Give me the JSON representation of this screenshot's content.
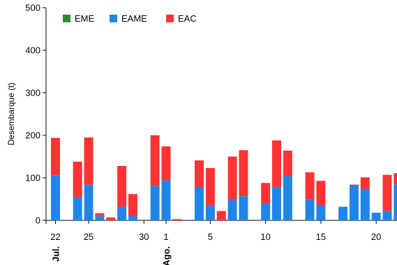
{
  "chart_data": {
    "type": "bar",
    "stacked": true,
    "title": "",
    "ylabel": "Desembarque (t)",
    "xlabel": "",
    "ylim": [
      0,
      500
    ],
    "yticks": [
      0,
      100,
      200,
      300,
      400,
      500
    ],
    "grid": false,
    "legend_position": "top-left",
    "colors": {
      "EME": "#2e8b2e",
      "EAME": "#1f86e8",
      "EAC": "#ff3333"
    },
    "x_tick_labels": [
      {
        "day": 0,
        "label": "22"
      },
      {
        "day": 3,
        "label": "25"
      },
      {
        "day": 8,
        "label": "30"
      },
      {
        "day": 10,
        "label": "1"
      },
      {
        "day": 14,
        "label": "5"
      },
      {
        "day": 19,
        "label": "10"
      },
      {
        "day": 24,
        "label": "15"
      },
      {
        "day": 29,
        "label": "20"
      }
    ],
    "month_labels": [
      {
        "day": 0,
        "label": "Jul."
      },
      {
        "day": 10,
        "label": "Ago."
      }
    ],
    "days": [
      0,
      2,
      3,
      4,
      5,
      6,
      7,
      9,
      10,
      11,
      13,
      14,
      15,
      16,
      17,
      19,
      20,
      21,
      23,
      24,
      26,
      27,
      28,
      29,
      30,
      31
    ],
    "series": [
      {
        "name": "EME",
        "values": [
          0,
          0,
          0,
          0,
          0,
          0,
          0,
          0,
          0,
          0,
          0,
          0,
          0,
          0,
          0,
          0,
          0,
          0,
          0,
          0,
          0,
          0,
          0,
          0,
          0,
          0
        ]
      },
      {
        "name": "EAME",
        "values": [
          106,
          54,
          84,
          10,
          0,
          32,
          10,
          81,
          94,
          0,
          78,
          36,
          0,
          48,
          57,
          40,
          78,
          104,
          48,
          36,
          32,
          82,
          73,
          18,
          22,
          85
        ]
      },
      {
        "name": "EAC",
        "values": [
          88,
          84,
          111,
          7,
          7,
          96,
          52,
          119,
          80,
          3,
          63,
          87,
          22,
          102,
          108,
          48,
          110,
          60,
          65,
          57,
          0,
          2,
          28,
          0,
          85,
          26
        ]
      }
    ]
  }
}
